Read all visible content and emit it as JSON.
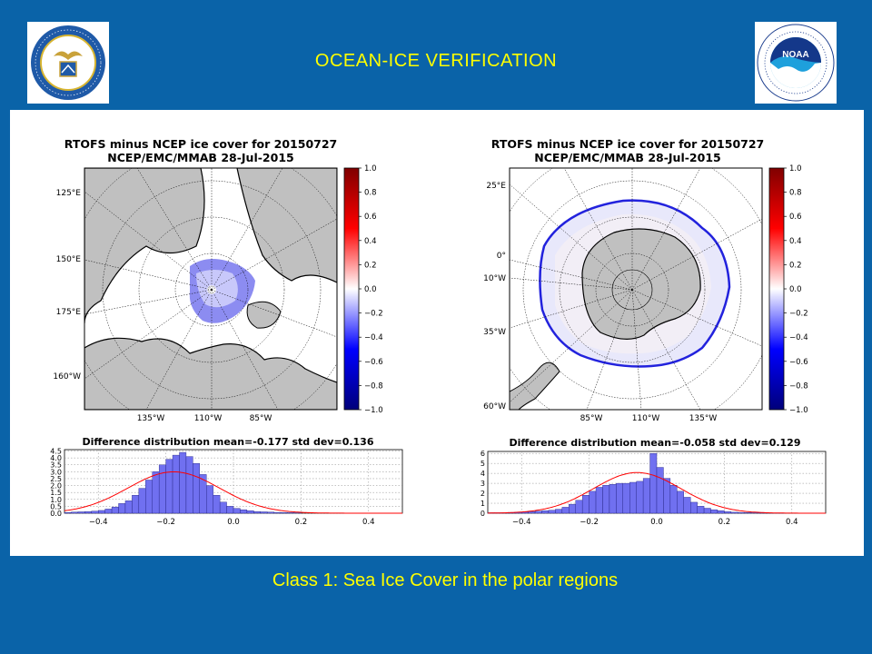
{
  "slide": {
    "title": "OCEAN-ICE  VERIFICATION",
    "caption": "Class 1: Sea Ice Cover in the polar regions"
  },
  "logos": {
    "doc": {
      "icon": "department-of-commerce-seal",
      "ring_text": "DEPARTMENT OF COMMERCE · UNITED STATES OF AMERICA"
    },
    "noaa": {
      "icon": "noaa-logo",
      "center_text": "NOAA",
      "ring_text": "NATIONAL OCEANIC AND ATMOSPHERIC ADMINISTRATION · U.S. DEPARTMENT OF COMMERCE"
    }
  },
  "colors": {
    "background": "#0a63a8",
    "title_text": "#ffff00",
    "land": "#c0c0c0",
    "hist_bar": "#7070f0",
    "fit_curve": "#ff0000"
  },
  "colorbar_ticks": [
    "1.0",
    "0.8",
    "0.6",
    "0.4",
    "0.2",
    "0.0",
    "−0.2",
    "−0.4",
    "−0.6",
    "−0.8",
    "−1.0"
  ],
  "panels": {
    "arctic": {
      "map_title_1": "RTOFS minus NCEP ice cover for 20150727",
      "map_title_2": "NCEP/EMC/MMAB 28-Jul-2015",
      "lon_left": [
        "125°E",
        "150°E",
        "175°E",
        "160°W"
      ],
      "lon_bottom": [
        "135°W",
        "110°W",
        "85°W"
      ],
      "hist_title": "Difference distribution mean=-0.177 std dev=0.136"
    },
    "antarctic": {
      "map_title_1": "RTOFS minus NCEP ice cover for 20150727",
      "map_title_2": "NCEP/EMC/MMAB 28-Jul-2015",
      "lon_left": [
        "25°E",
        "0°",
        "10°W",
        "35°W",
        "60°W"
      ],
      "lon_bottom": [
        "85°W",
        "110°W",
        "135°W"
      ],
      "hist_title": "Difference distribution mean=-0.058 std dev=0.129"
    }
  },
  "chart_data": [
    {
      "type": "bar",
      "title": "Difference distribution mean=-0.177 std dev=0.136",
      "x": [
        -0.49,
        -0.47,
        -0.45,
        -0.43,
        -0.41,
        -0.39,
        -0.37,
        -0.35,
        -0.33,
        -0.31,
        -0.29,
        -0.27,
        -0.25,
        -0.23,
        -0.21,
        -0.19,
        -0.17,
        -0.15,
        -0.13,
        -0.11,
        -0.09,
        -0.07,
        -0.05,
        -0.03,
        -0.01,
        0.01,
        0.03,
        0.05,
        0.07,
        0.09,
        0.11,
        0.13,
        0.15,
        0.17,
        0.19
      ],
      "values": [
        0.05,
        0.08,
        0.1,
        0.12,
        0.15,
        0.2,
        0.3,
        0.45,
        0.7,
        0.9,
        1.3,
        1.8,
        2.4,
        3.0,
        3.5,
        3.9,
        4.2,
        4.4,
        4.1,
        3.6,
        2.8,
        2.0,
        1.3,
        0.8,
        0.5,
        0.35,
        0.25,
        0.18,
        0.12,
        0.1,
        0.08,
        0.06,
        0.05,
        0.04,
        0.03
      ],
      "fit_curve": {
        "mean": -0.177,
        "std": 0.136
      },
      "xticks": [
        "−0.4",
        "−0.2",
        "0.0",
        "0.2",
        "0.4"
      ],
      "yticks": [
        "0.0",
        "0.5",
        "1.0",
        "1.5",
        "2.0",
        "2.5",
        "3.0",
        "3.5",
        "4.0",
        "4.5"
      ],
      "xlim": [
        -0.5,
        0.5
      ],
      "ylim": [
        0,
        4.6
      ],
      "grid": true
    },
    {
      "type": "bar",
      "title": "Difference distribution mean=-0.058 std dev=0.129",
      "x": [
        -0.49,
        -0.47,
        -0.45,
        -0.43,
        -0.41,
        -0.39,
        -0.37,
        -0.35,
        -0.33,
        -0.31,
        -0.29,
        -0.27,
        -0.25,
        -0.23,
        -0.21,
        -0.19,
        -0.17,
        -0.15,
        -0.13,
        -0.11,
        -0.09,
        -0.07,
        -0.05,
        -0.03,
        -0.01,
        0.01,
        0.03,
        0.05,
        0.07,
        0.09,
        0.11,
        0.13,
        0.15,
        0.17,
        0.19,
        0.21,
        0.23,
        0.25,
        0.27,
        0.29,
        0.31,
        0.33,
        0.35,
        0.37
      ],
      "values": [
        0.05,
        0.05,
        0.05,
        0.08,
        0.1,
        0.12,
        0.15,
        0.2,
        0.25,
        0.3,
        0.4,
        0.6,
        0.9,
        1.3,
        1.8,
        2.2,
        2.6,
        2.8,
        2.9,
        3.0,
        3.0,
        3.1,
        3.2,
        3.5,
        6.0,
        4.6,
        3.5,
        2.8,
        2.2,
        1.6,
        1.1,
        0.7,
        0.5,
        0.35,
        0.25,
        0.15,
        0.1,
        0.08,
        0.06,
        0.05,
        0.05,
        0.04,
        0.03,
        0.03
      ],
      "fit_curve": {
        "mean": -0.058,
        "std": 0.129
      },
      "xticks": [
        "−0.4",
        "−0.2",
        "0.0",
        "0.2",
        "0.4"
      ],
      "yticks": [
        "0",
        "1",
        "2",
        "3",
        "4",
        "5",
        "6"
      ],
      "xlim": [
        -0.5,
        0.5
      ],
      "ylim": [
        0,
        6.2
      ],
      "grid": true
    }
  ]
}
